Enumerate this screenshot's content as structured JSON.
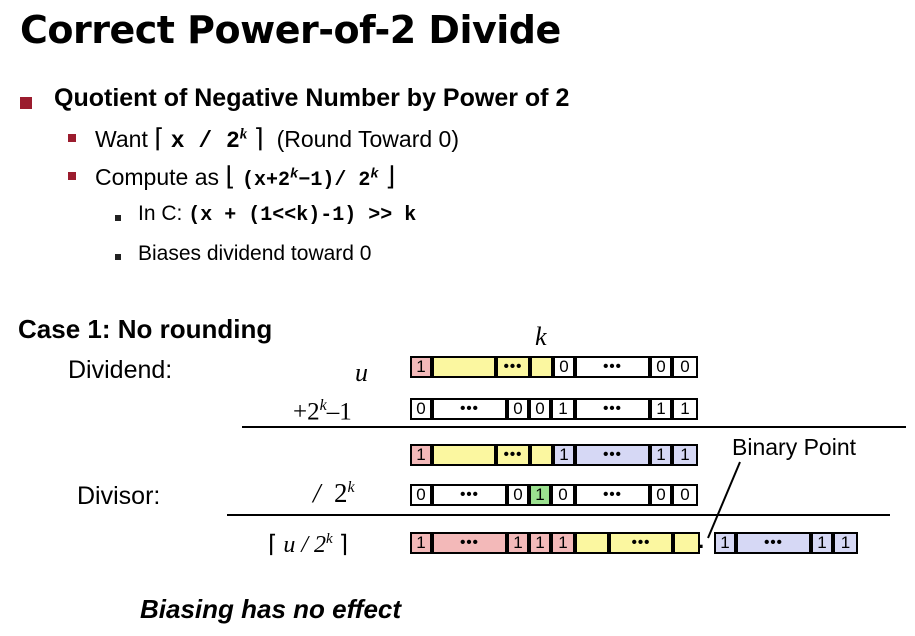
{
  "slide": {
    "title": "Correct Power-of-2 Divide",
    "bullet1": "Quotient of Negative Number by Power of 2",
    "want": {
      "prefix": "Want",
      "lceil": "⌈",
      "expr": "x / 2",
      "exp": "k",
      "rceil": "⌉",
      "suffix": "(Round Toward 0)"
    },
    "compute": {
      "prefix": "Compute as",
      "lfloor": "⌊",
      "expr1": "(x+2",
      "exp": "k",
      "expr2": "−1)/ 2",
      "exp2": "k",
      "rfloor": "⌋"
    },
    "inc": {
      "prefix": "In C:",
      "code": "(x + (1<<k)-1) >> k"
    },
    "biases": "Biases dividend toward 0"
  },
  "diagram": {
    "case_label": "Case 1: No rounding",
    "dividend_label": "Dividend:",
    "divisor_label": "Divisor:",
    "k_label": "k",
    "u_label": "u",
    "bias_label": {
      "plus": "+2",
      "exp": "k",
      "minus": "–1"
    },
    "divisor_op": {
      "slash": "/",
      "base": "2",
      "exp": "k"
    },
    "result_label": {
      "lceil": "⌈",
      "text": "u / 2",
      "exp": "k",
      "rceil": "⌉"
    },
    "binary_point_label": "Binary Point",
    "binary_point_dot": ".",
    "rows": {
      "u": [
        "1",
        "•••",
        "",
        "0",
        "•••",
        "0",
        "0"
      ],
      "bias": [
        "0",
        "•••",
        "0",
        "0",
        "1",
        "•••",
        "1",
        "1"
      ],
      "sum": [
        "1",
        "•••",
        "",
        "1",
        "•••",
        "1",
        "1"
      ],
      "divisor": [
        "0",
        "•••",
        "0",
        "1",
        "0",
        "•••",
        "0",
        "0"
      ],
      "result_int": [
        "1",
        "•••",
        "1",
        "1",
        "1",
        "•••",
        ""
      ],
      "result_frac": [
        "1",
        "•••",
        "1",
        "1"
      ]
    },
    "colors": {
      "sign": "#f3b9b9",
      "high": "#fbf7a0",
      "low": "#d6d8f5",
      "one_bit": "#9be08f",
      "bullet": "#9b1c2e"
    },
    "caption": "Biasing has no effect"
  }
}
